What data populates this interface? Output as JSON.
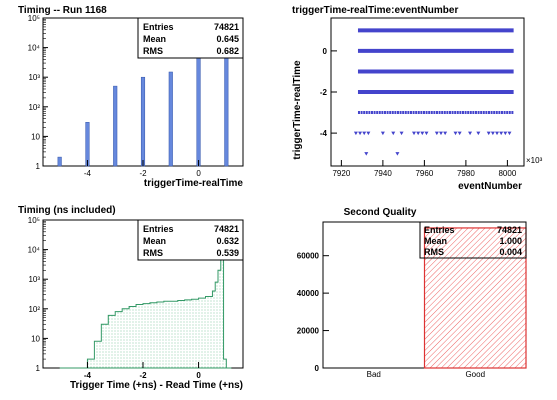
{
  "chart_data": [
    {
      "type": "bar",
      "title": "Timing -- Run 1168",
      "xlabel": "triggerTime-realTime",
      "ylabel": "",
      "y_scale": "log",
      "xlim": [
        -5.6,
        1.6
      ],
      "ylim": [
        1,
        100000
      ],
      "x_ticks": [
        "-4",
        "-2",
        "0"
      ],
      "y_ticks": [
        "1",
        "10",
        "10²",
        "10³",
        "10⁴",
        "10⁵"
      ],
      "x": [
        -5,
        -4,
        -3,
        -2,
        -1,
        0,
        1
      ],
      "values": [
        2,
        30,
        500,
        1000,
        1500,
        15000,
        60000
      ],
      "color": "#6688dd",
      "stats": {
        "entries_label": "Entries",
        "entries": "74821",
        "mean_label": "Mean",
        "mean": "0.645",
        "rms_label": "RMS",
        "rms": "0.682"
      }
    },
    {
      "type": "scatter",
      "title": "triggerTime-realTime:eventNumber",
      "xlabel": "eventNumber",
      "ylabel": "triggerTime-realTime",
      "x_multiplier": "×10³",
      "xlim": [
        7915,
        8008
      ],
      "ylim": [
        -5.6,
        1.6
      ],
      "x_ticks": [
        "7920",
        "7940",
        "7960",
        "7980",
        "8000"
      ],
      "y_ticks": [
        "-4",
        "-2",
        "0"
      ],
      "color": "#4444cc",
      "bands": [
        {
          "y": 1,
          "x_range": [
            7928,
            8003
          ],
          "density": "continuous"
        },
        {
          "y": 0,
          "x_range": [
            7928,
            8003
          ],
          "density": "continuous"
        },
        {
          "y": -1,
          "x_range": [
            7928,
            8003
          ],
          "density": "continuous"
        },
        {
          "y": -2,
          "x_range": [
            7928,
            8003
          ],
          "density": "continuous"
        },
        {
          "y": -3,
          "x_range": [
            7928,
            8003
          ],
          "density": "dense"
        }
      ],
      "points": [
        [
          7927,
          -4
        ],
        [
          7929,
          -4
        ],
        [
          7931,
          -4
        ],
        [
          7933,
          -4
        ],
        [
          7940,
          -4
        ],
        [
          7945,
          -4
        ],
        [
          7949,
          -4
        ],
        [
          7955,
          -4
        ],
        [
          7957,
          -4
        ],
        [
          7959,
          -4
        ],
        [
          7961,
          -4
        ],
        [
          7966,
          -4
        ],
        [
          7968,
          -4
        ],
        [
          7970,
          -4
        ],
        [
          7975,
          -4
        ],
        [
          7977,
          -4
        ],
        [
          7982,
          -4
        ],
        [
          7986,
          -4
        ],
        [
          7991,
          -4
        ],
        [
          7993,
          -4
        ],
        [
          7995,
          -4
        ],
        [
          7997,
          -4
        ],
        [
          7999,
          -4
        ],
        [
          8001,
          -4
        ],
        [
          7932,
          -5
        ],
        [
          7947,
          -5
        ]
      ]
    },
    {
      "type": "area",
      "title": "Timing (ns included)",
      "xlabel": "Trigger Time (+ns) - Read Time (+ns)",
      "ylabel": "",
      "y_scale": "log",
      "xlim": [
        -5.6,
        1.6
      ],
      "ylim": [
        1,
        100000
      ],
      "x_ticks": [
        "-4",
        "-2",
        "0"
      ],
      "y_ticks": [
        "1",
        "10",
        "10²",
        "10³",
        "10⁴",
        "10⁵"
      ],
      "x": [
        -5.0,
        -4.75,
        -4.5,
        -4.25,
        -4.0,
        -3.75,
        -3.5,
        -3.25,
        -3.0,
        -2.75,
        -2.5,
        -2.25,
        -2.0,
        -1.75,
        -1.5,
        -1.25,
        -1.0,
        -0.75,
        -0.5,
        -0.25,
        0.0,
        0.25,
        0.5,
        0.6,
        0.7,
        0.8,
        0.9,
        1.0
      ],
      "values": [
        1,
        1,
        1,
        1,
        2,
        8,
        30,
        60,
        80,
        100,
        120,
        140,
        150,
        160,
        170,
        180,
        180,
        190,
        200,
        210,
        230,
        260,
        400,
        800,
        2000,
        8000,
        2,
        1
      ],
      "color": "#44aa77",
      "stats": {
        "entries_label": "Entries",
        "entries": "74821",
        "mean_label": "Mean",
        "mean": "0.632",
        "rms_label": "RMS",
        "rms": "0.539"
      }
    },
    {
      "type": "bar",
      "title": "Second Quality",
      "xlabel": "",
      "ylabel": "",
      "categories": [
        "Bad",
        "Good"
      ],
      "values": [
        0,
        74821
      ],
      "ylim": [
        0,
        78000
      ],
      "y_ticks": [
        "0",
        "20000",
        "40000",
        "60000"
      ],
      "color": "#dd3333",
      "stats": {
        "entries_label": "Entries",
        "entries": "74821",
        "mean_label": "Mean",
        "mean": "1.000",
        "rms_label": "RMS",
        "rms": "0.004"
      }
    }
  ]
}
